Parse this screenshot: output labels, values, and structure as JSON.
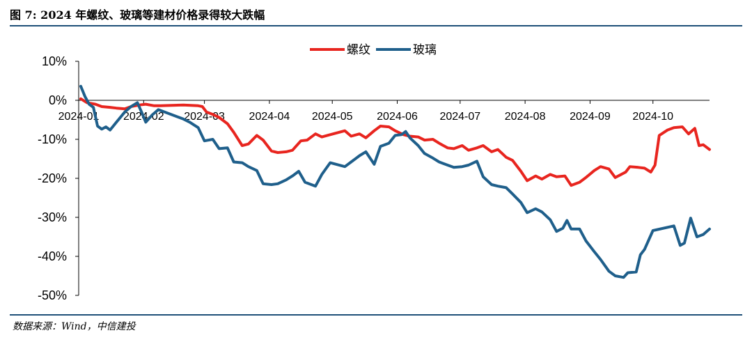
{
  "header": {
    "title": "图 7: 2024 年螺纹、玻璃等建材价格录得较大跌幅"
  },
  "footer": {
    "source": "数据来源：Wind，中信建投"
  },
  "chart_data": {
    "type": "line",
    "title": "",
    "xlabel": "",
    "ylabel": "",
    "y_unit": "%",
    "ylim": [
      -50,
      10
    ],
    "yticks": [
      10,
      0,
      -10,
      -20,
      -30,
      -40,
      -50
    ],
    "ytick_labels": [
      "10%",
      "0%",
      "-10%",
      "-20%",
      "-30%",
      "-40%",
      "-50%"
    ],
    "xlim": [
      "2024-01-01",
      "2024-10-28"
    ],
    "xticks": [
      "2024-01-01",
      "2024-02-01",
      "2024-03-01",
      "2024-04-01",
      "2024-05-01",
      "2024-06-01",
      "2024-07-01",
      "2024-08-01",
      "2024-09-01",
      "2024-10-01"
    ],
    "xtick_labels": [
      "2024-01",
      "2024-02",
      "2024-03",
      "2024-04",
      "2024-05",
      "2024-06",
      "2024-07",
      "2024-08",
      "2024-09",
      "2024-10"
    ],
    "grid": false,
    "legend_position": "top-center",
    "series": [
      {
        "name": "螺纹",
        "color": "#e8251f",
        "points": [
          [
            "2024-01-02",
            0.4
          ],
          [
            "2024-01-05",
            -0.6
          ],
          [
            "2024-01-09",
            -1.0
          ],
          [
            "2024-01-12",
            -1.6
          ],
          [
            "2024-01-16",
            -1.8
          ],
          [
            "2024-01-19",
            -2.0
          ],
          [
            "2024-01-23",
            -2.2
          ],
          [
            "2024-01-26",
            -1.6
          ],
          [
            "2024-01-30",
            -1.2
          ],
          [
            "2024-02-02",
            -1.0
          ],
          [
            "2024-02-06",
            -1.4
          ],
          [
            "2024-02-09",
            -1.4
          ],
          [
            "2024-02-20",
            -1.2
          ],
          [
            "2024-02-27",
            -1.4
          ],
          [
            "2024-02-29",
            -1.6
          ],
          [
            "2024-03-02",
            -3.0
          ],
          [
            "2024-03-05",
            -3.6
          ],
          [
            "2024-03-08",
            -4.4
          ],
          [
            "2024-03-12",
            -6.0
          ],
          [
            "2024-03-15",
            -8.2
          ],
          [
            "2024-03-19",
            -11.6
          ],
          [
            "2024-03-22",
            -11.2
          ],
          [
            "2024-03-26",
            -9.0
          ],
          [
            "2024-03-29",
            -10.2
          ],
          [
            "2024-04-02",
            -13.0
          ],
          [
            "2024-04-05",
            -13.4
          ],
          [
            "2024-04-09",
            -13.2
          ],
          [
            "2024-04-12",
            -12.8
          ],
          [
            "2024-04-16",
            -10.4
          ],
          [
            "2024-04-19",
            -10.2
          ],
          [
            "2024-04-23",
            -8.6
          ],
          [
            "2024-04-26",
            -9.4
          ],
          [
            "2024-04-30",
            -8.8
          ],
          [
            "2024-05-07",
            -7.8
          ],
          [
            "2024-05-10",
            -9.2
          ],
          [
            "2024-05-14",
            -8.6
          ],
          [
            "2024-05-17",
            -9.6
          ],
          [
            "2024-05-21",
            -7.8
          ],
          [
            "2024-05-24",
            -6.6
          ],
          [
            "2024-05-28",
            -6.8
          ],
          [
            "2024-05-31",
            -7.8
          ],
          [
            "2024-06-04",
            -8.8
          ],
          [
            "2024-06-07",
            -9.2
          ],
          [
            "2024-06-11",
            -9.4
          ],
          [
            "2024-06-14",
            -10.2
          ],
          [
            "2024-06-18",
            -10.0
          ],
          [
            "2024-06-21",
            -11.0
          ],
          [
            "2024-06-25",
            -12.2
          ],
          [
            "2024-06-28",
            -12.4
          ],
          [
            "2024-07-02",
            -11.6
          ],
          [
            "2024-07-05",
            -12.8
          ],
          [
            "2024-07-09",
            -12.2
          ],
          [
            "2024-07-12",
            -11.6
          ],
          [
            "2024-07-16",
            -13.2
          ],
          [
            "2024-07-19",
            -12.6
          ],
          [
            "2024-07-23",
            -14.6
          ],
          [
            "2024-07-26",
            -15.4
          ],
          [
            "2024-07-30",
            -18.2
          ],
          [
            "2024-08-02",
            -20.6
          ],
          [
            "2024-08-06",
            -19.4
          ],
          [
            "2024-08-09",
            -20.2
          ],
          [
            "2024-08-13",
            -19.0
          ],
          [
            "2024-08-16",
            -19.6
          ],
          [
            "2024-08-20",
            -19.4
          ],
          [
            "2024-08-23",
            -21.8
          ],
          [
            "2024-08-27",
            -21.0
          ],
          [
            "2024-08-30",
            -19.8
          ],
          [
            "2024-09-03",
            -18.0
          ],
          [
            "2024-09-06",
            -17.0
          ],
          [
            "2024-09-10",
            -17.6
          ],
          [
            "2024-09-13",
            -19.8
          ],
          [
            "2024-09-18",
            -18.4
          ],
          [
            "2024-09-20",
            -17.0
          ],
          [
            "2024-09-24",
            -17.2
          ],
          [
            "2024-09-27",
            -17.4
          ],
          [
            "2024-09-30",
            -18.4
          ],
          [
            "2024-10-02",
            -16.6
          ],
          [
            "2024-10-04",
            -9.0
          ],
          [
            "2024-10-08",
            -7.6
          ],
          [
            "2024-10-11",
            -7.0
          ],
          [
            "2024-10-15",
            -6.8
          ],
          [
            "2024-10-18",
            -8.6
          ],
          [
            "2024-10-21",
            -7.2
          ],
          [
            "2024-10-23",
            -11.6
          ],
          [
            "2024-10-25",
            -11.4
          ],
          [
            "2024-10-28",
            -12.6
          ]
        ]
      },
      {
        "name": "玻璃",
        "color": "#1f5f8b",
        "points": [
          [
            "2024-01-02",
            3.6
          ],
          [
            "2024-01-04",
            1.0
          ],
          [
            "2024-01-06",
            -1.0
          ],
          [
            "2024-01-08",
            -1.8
          ],
          [
            "2024-01-10",
            -6.6
          ],
          [
            "2024-01-12",
            -7.4
          ],
          [
            "2024-01-14",
            -6.8
          ],
          [
            "2024-01-16",
            -7.6
          ],
          [
            "2024-01-19",
            -5.6
          ],
          [
            "2024-01-23",
            -3.0
          ],
          [
            "2024-01-26",
            -1.6
          ],
          [
            "2024-01-29",
            -0.6
          ],
          [
            "2024-01-31",
            -3.0
          ],
          [
            "2024-02-02",
            -5.6
          ],
          [
            "2024-02-05",
            -3.8
          ],
          [
            "2024-02-08",
            -2.4
          ],
          [
            "2024-02-20",
            -4.8
          ],
          [
            "2024-02-23",
            -5.6
          ],
          [
            "2024-02-27",
            -7.0
          ],
          [
            "2024-03-01",
            -10.4
          ],
          [
            "2024-03-05",
            -10.0
          ],
          [
            "2024-03-08",
            -12.4
          ],
          [
            "2024-03-12",
            -12.2
          ],
          [
            "2024-03-15",
            -15.8
          ],
          [
            "2024-03-19",
            -16.0
          ],
          [
            "2024-03-22",
            -17.0
          ],
          [
            "2024-03-26",
            -18.0
          ],
          [
            "2024-03-29",
            -21.4
          ],
          [
            "2024-04-02",
            -21.6
          ],
          [
            "2024-04-05",
            -21.4
          ],
          [
            "2024-04-09",
            -20.4
          ],
          [
            "2024-04-12",
            -19.4
          ],
          [
            "2024-04-15",
            -18.2
          ],
          [
            "2024-04-18",
            -21.0
          ],
          [
            "2024-04-23",
            -22.0
          ],
          [
            "2024-04-26",
            -19.0
          ],
          [
            "2024-04-30",
            -16.0
          ],
          [
            "2024-05-07",
            -17.0
          ],
          [
            "2024-05-10",
            -15.8
          ],
          [
            "2024-05-14",
            -14.2
          ],
          [
            "2024-05-17",
            -13.2
          ],
          [
            "2024-05-21",
            -16.4
          ],
          [
            "2024-05-24",
            -11.8
          ],
          [
            "2024-05-28",
            -11.0
          ],
          [
            "2024-05-31",
            -9.0
          ],
          [
            "2024-06-03",
            -8.8
          ],
          [
            "2024-06-05",
            -8.0
          ],
          [
            "2024-06-07",
            -9.6
          ],
          [
            "2024-06-11",
            -11.6
          ],
          [
            "2024-06-14",
            -13.6
          ],
          [
            "2024-06-18",
            -14.8
          ],
          [
            "2024-06-21",
            -15.8
          ],
          [
            "2024-06-25",
            -16.6
          ],
          [
            "2024-06-28",
            -17.2
          ],
          [
            "2024-07-02",
            -17.0
          ],
          [
            "2024-07-05",
            -16.6
          ],
          [
            "2024-07-09",
            -15.6
          ],
          [
            "2024-07-12",
            -19.6
          ],
          [
            "2024-07-16",
            -21.6
          ],
          [
            "2024-07-19",
            -22.0
          ],
          [
            "2024-07-23",
            -22.4
          ],
          [
            "2024-07-26",
            -24.0
          ],
          [
            "2024-07-30",
            -26.2
          ],
          [
            "2024-08-02",
            -28.8
          ],
          [
            "2024-08-06",
            -27.8
          ],
          [
            "2024-08-09",
            -28.6
          ],
          [
            "2024-08-13",
            -30.6
          ],
          [
            "2024-08-16",
            -33.6
          ],
          [
            "2024-08-19",
            -32.8
          ],
          [
            "2024-08-21",
            -30.8
          ],
          [
            "2024-08-23",
            -33.0
          ],
          [
            "2024-08-27",
            -33.0
          ],
          [
            "2024-08-30",
            -36.0
          ],
          [
            "2024-09-03",
            -38.8
          ],
          [
            "2024-09-06",
            -40.8
          ],
          [
            "2024-09-10",
            -43.8
          ],
          [
            "2024-09-13",
            -45.0
          ],
          [
            "2024-09-17",
            -45.4
          ],
          [
            "2024-09-19",
            -44.2
          ],
          [
            "2024-09-23",
            -44.0
          ],
          [
            "2024-09-25",
            -39.6
          ],
          [
            "2024-09-27",
            -38.2
          ],
          [
            "2024-10-01",
            -33.4
          ],
          [
            "2024-10-11",
            -32.2
          ],
          [
            "2024-10-14",
            -37.2
          ],
          [
            "2024-10-16",
            -36.6
          ],
          [
            "2024-10-19",
            -30.2
          ],
          [
            "2024-10-22",
            -35.0
          ],
          [
            "2024-10-25",
            -34.4
          ],
          [
            "2024-10-28",
            -33.0
          ]
        ]
      }
    ]
  }
}
